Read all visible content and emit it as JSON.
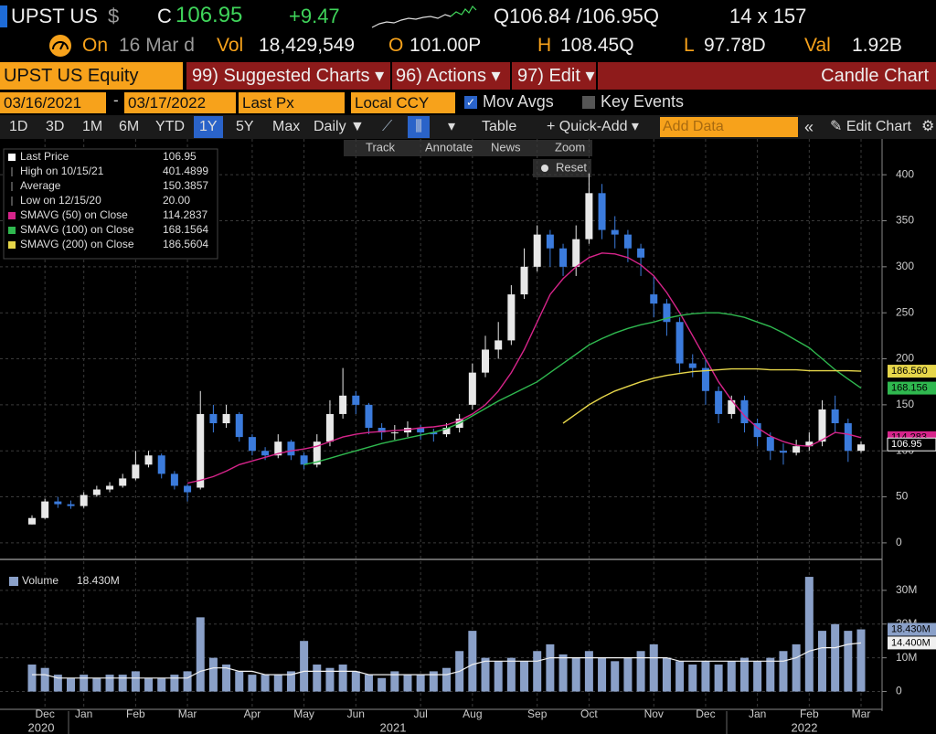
{
  "header": {
    "ticker": "UPST US",
    "currency": "$",
    "last_prefix": "C",
    "last": "106.95",
    "change": "+9.47",
    "quote": "Q106.84 /106.95Q",
    "size": "14 x 157",
    "on": "On",
    "date": "16 Mar d",
    "vol_label": "Vol",
    "volume": "18,429,549",
    "open_label": "O",
    "open": "101.00P",
    "high_label": "H",
    "high": "108.45Q",
    "low_label": "L",
    "low": "97.78D",
    "val_label": "Val",
    "val": "1.92B"
  },
  "menu": {
    "security": "UPST US Equity",
    "items": [
      "99) Suggested Charts ▾",
      "96) Actions ▾",
      "97) Edit ▾"
    ],
    "title": "Candle Chart"
  },
  "settings": {
    "start": "03/16/2021",
    "end": "03/17/2022",
    "field": "Last Px",
    "currency": "Local CCY",
    "mov_avgs": "Mov Avgs",
    "key_events": "Key Events"
  },
  "toolbar": {
    "periods": [
      "1D",
      "3D",
      "1M",
      "6M",
      "YTD",
      "1Y",
      "5Y",
      "Max"
    ],
    "active": 5,
    "frequency": "Daily ▼",
    "table": "Table",
    "quick_add": "+ Quick-Add ▾",
    "add_data": "Add Data",
    "edit_chart": "Edit Chart"
  },
  "chart_tools": [
    "Track",
    "Annotate",
    "News",
    "Zoom"
  ],
  "reset": "Reset",
  "chart_data": [
    {
      "type": "candlestick",
      "up_color": "#e8e8e8",
      "down_color": "#3b7bdc",
      "ylim": [
        -16,
        426
      ],
      "yticks": [
        0,
        50,
        100,
        150,
        200,
        250,
        300,
        350,
        400
      ],
      "grid": true,
      "last_label": "106.95",
      "legend": [
        {
          "label": "Last Price",
          "value": "106.95"
        },
        {
          "label": "High on 10/15/21",
          "value": "401.4899"
        },
        {
          "label": "Average",
          "value": "150.3857"
        },
        {
          "label": "Low on 12/15/20",
          "value": "20.00"
        }
      ],
      "open": [
        20,
        27,
        45,
        42,
        40,
        52,
        58,
        62,
        70,
        85,
        95,
        75,
        62,
        60,
        140,
        130,
        140,
        115,
        100,
        95,
        110,
        95,
        85,
        110,
        140,
        160,
        150,
        125,
        120,
        120,
        125,
        120,
        118,
        125,
        150,
        185,
        210,
        220,
        270,
        300,
        335,
        320,
        300,
        330,
        380,
        340,
        335,
        320,
        270,
        260,
        240,
        195,
        190,
        165,
        140,
        155,
        130,
        115,
        100,
        98,
        105,
        110,
        145,
        130,
        100
      ],
      "high": [
        30,
        48,
        50,
        46,
        55,
        62,
        66,
        75,
        100,
        100,
        97,
        78,
        64,
        165,
        150,
        150,
        142,
        118,
        104,
        118,
        112,
        98,
        118,
        155,
        190,
        165,
        152,
        130,
        128,
        132,
        128,
        124,
        130,
        140,
        195,
        225,
        240,
        280,
        320,
        345,
        340,
        325,
        345,
        401.49,
        390,
        355,
        340,
        325,
        290,
        265,
        245,
        205,
        200,
        170,
        160,
        160,
        135,
        120,
        108,
        112,
        120,
        155,
        160,
        135,
        110
      ],
      "low": [
        20,
        26,
        38,
        37,
        38,
        50,
        55,
        60,
        68,
        82,
        70,
        58,
        45,
        58,
        120,
        125,
        110,
        95,
        90,
        92,
        90,
        80,
        82,
        105,
        135,
        140,
        118,
        112,
        112,
        115,
        112,
        110,
        115,
        120,
        145,
        180,
        200,
        215,
        265,
        295,
        300,
        290,
        290,
        325,
        330,
        320,
        305,
        290,
        245,
        225,
        185,
        180,
        150,
        130,
        135,
        120,
        105,
        90,
        85,
        95,
        100,
        105,
        120,
        88,
        98
      ],
      "close": [
        27,
        45,
        42,
        40,
        52,
        58,
        62,
        70,
        85,
        95,
        75,
        62,
        55,
        140,
        130,
        140,
        115,
        100,
        95,
        110,
        95,
        85,
        110,
        140,
        160,
        150,
        125,
        120,
        120,
        125,
        120,
        118,
        125,
        135,
        185,
        210,
        220,
        270,
        300,
        335,
        320,
        300,
        330,
        380,
        340,
        335,
        320,
        310,
        260,
        240,
        195,
        190,
        165,
        140,
        155,
        130,
        115,
        100,
        98,
        105,
        110,
        145,
        130,
        100,
        106.95
      ],
      "series": [
        {
          "name": "SMAVG (50)  on Close",
          "legend_value": "114.2837",
          "axis_label": "114.283",
          "color": "#d6248a",
          "values": [
            null,
            null,
            null,
            null,
            null,
            null,
            null,
            null,
            null,
            null,
            null,
            null,
            65,
            68,
            72,
            78,
            85,
            89,
            93,
            97,
            100,
            102,
            105,
            110,
            115,
            118,
            120,
            121,
            122,
            123,
            125,
            126,
            128,
            133,
            140,
            150,
            165,
            185,
            210,
            240,
            270,
            287,
            300,
            310,
            315,
            314,
            310,
            302,
            290,
            272,
            250,
            225,
            200,
            175,
            155,
            138,
            125,
            116,
            110,
            106,
            105,
            112,
            120,
            118,
            114.28
          ]
        },
        {
          "name": "SMAVG (100)  on Close",
          "legend_value": "168.1564",
          "axis_label": "168.156",
          "color": "#2fb84f",
          "values": [
            null,
            null,
            null,
            null,
            null,
            null,
            null,
            null,
            null,
            null,
            null,
            null,
            null,
            null,
            null,
            null,
            null,
            null,
            null,
            null,
            null,
            85,
            88,
            92,
            96,
            100,
            104,
            108,
            111,
            114,
            117,
            120,
            124,
            130,
            138,
            146,
            154,
            161,
            168,
            175,
            185,
            195,
            205,
            215,
            222,
            228,
            233,
            237,
            240,
            244,
            247,
            249,
            250,
            250,
            248,
            245,
            240,
            235,
            228,
            220,
            212,
            200,
            188,
            178,
            168.16
          ]
        },
        {
          "name": "SMAVG (200)  on Close",
          "legend_value": "186.5604",
          "axis_label": "186.560",
          "color": "#e6d64a",
          "values": [
            null,
            null,
            null,
            null,
            null,
            null,
            null,
            null,
            null,
            null,
            null,
            null,
            null,
            null,
            null,
            null,
            null,
            null,
            null,
            null,
            null,
            null,
            null,
            null,
            null,
            null,
            null,
            null,
            null,
            null,
            null,
            null,
            null,
            null,
            null,
            null,
            null,
            null,
            null,
            null,
            null,
            130,
            140,
            150,
            158,
            165,
            170,
            175,
            179,
            182,
            184,
            186,
            187,
            188,
            189,
            189,
            189,
            188,
            188,
            188,
            187,
            187,
            187,
            187,
            186.56
          ]
        }
      ]
    },
    {
      "type": "bar",
      "name": "Volume",
      "value_label": "18.430M",
      "color": "#8aa0c8",
      "ylim": [
        -5,
        37
      ],
      "yticks": [
        0,
        {
          "value": 10,
          "label": "10M"
        },
        {
          "value": 20,
          "label": "20M"
        },
        {
          "value": 30,
          "label": "30M"
        }
      ],
      "grid": true,
      "categories": [
        null,
        "Dec",
        null,
        null,
        "Jan",
        null,
        null,
        null,
        "Feb",
        null,
        null,
        null,
        "Mar",
        null,
        null,
        null,
        null,
        "Apr",
        null,
        null,
        null,
        "May",
        null,
        null,
        null,
        "Jun",
        null,
        null,
        null,
        null,
        "Jul",
        null,
        null,
        null,
        "Aug",
        null,
        null,
        null,
        null,
        "Sep",
        null,
        null,
        null,
        "Oct",
        null,
        null,
        null,
        null,
        "Nov",
        null,
        null,
        null,
        "Dec",
        null,
        null,
        null,
        "Jan",
        null,
        null,
        null,
        "Feb",
        null,
        null,
        null,
        "Mar"
      ],
      "years": [
        "2020",
        "2021",
        "2022"
      ],
      "values": [
        8,
        7,
        5,
        4,
        5,
        4,
        5,
        5,
        6,
        4,
        4,
        5,
        6,
        22,
        10,
        8,
        6,
        5,
        5,
        5,
        6,
        15,
        8,
        7,
        8,
        6,
        5,
        4,
        6,
        5,
        5,
        6,
        7,
        12,
        18,
        10,
        9,
        10,
        9,
        12,
        14,
        11,
        10,
        12,
        10,
        9,
        10,
        12,
        14,
        10,
        9,
        8,
        9,
        8,
        9,
        10,
        9,
        10,
        12,
        14,
        34,
        18,
        20,
        18,
        18.43
      ],
      "series": [
        {
          "color": "#f0f0f0",
          "value_label": "14.400M",
          "values": [
            5,
            5,
            4,
            4,
            4,
            4,
            4,
            4,
            4,
            4,
            4,
            4,
            4,
            6,
            7,
            7,
            6,
            6,
            5,
            5,
            5,
            6,
            6,
            6,
            6,
            6,
            5,
            5,
            5,
            5,
            5,
            5,
            5,
            6,
            8,
            9,
            9,
            9,
            9,
            9,
            10,
            10,
            10,
            10,
            10,
            10,
            10,
            10,
            10,
            10,
            9,
            9,
            9,
            9,
            9,
            9,
            9,
            9,
            9,
            10,
            12,
            13,
            13,
            14,
            14.4
          ]
        }
      ]
    }
  ]
}
